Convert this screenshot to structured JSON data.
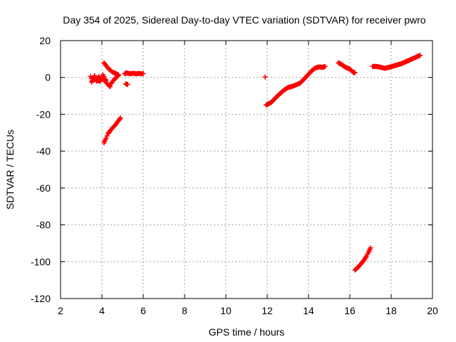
{
  "chart_data": {
    "type": "scatter",
    "title": "Day 354 of 2025, Sidereal Day-to-day VTEC variation (SDTVAR) for receiver pwro",
    "xlabel": "GPS time / hours",
    "ylabel": "SDTVAR / TECUs",
    "xlim": [
      2,
      20
    ],
    "ylim": [
      -120,
      20
    ],
    "xticks": [
      2,
      4,
      6,
      8,
      10,
      12,
      14,
      16,
      18,
      20
    ],
    "yticks": [
      -120,
      -100,
      -80,
      -60,
      -40,
      -20,
      0,
      20
    ],
    "xtick_labels": [
      "2",
      "4",
      "6",
      "8",
      "10",
      "12",
      "14",
      "16",
      "18",
      "20"
    ],
    "ytick_labels": [
      "-120",
      "-100",
      "-80",
      "-60",
      "-40",
      "-20",
      "0",
      "20"
    ],
    "grid": true,
    "legend": "none",
    "marker": "plus",
    "color": "#ff0000",
    "segments": [
      {
        "x": [
          3.45,
          3.55,
          3.65,
          3.75,
          3.85,
          3.95,
          4.05,
          4.1
        ],
        "y": [
          0.5,
          -1.5,
          1.0,
          -2.0,
          0.5,
          -1.0,
          1.5,
          0.5
        ]
      },
      {
        "x": [
          3.5,
          3.6,
          3.75,
          3.9,
          4.0,
          4.1,
          4.2
        ],
        "y": [
          -2.5,
          -1.0,
          -1.5,
          -2.0,
          -1.0,
          -0.5,
          -1.5
        ]
      },
      {
        "x": [
          4.1,
          4.2,
          4.3,
          4.4
        ],
        "y": [
          -1.5,
          -2.5,
          -4.0,
          -5.0
        ]
      },
      {
        "x": [
          4.4,
          4.5,
          4.6,
          4.7,
          4.8
        ],
        "y": [
          -4.0,
          -2.5,
          -1.0,
          0.0,
          1.0
        ]
      },
      {
        "x": [
          4.1,
          4.2,
          4.3,
          4.4,
          4.5,
          4.6,
          4.7,
          4.8
        ],
        "y": [
          8.0,
          6.5,
          5.0,
          4.0,
          3.0,
          2.5,
          2.0,
          1.5
        ]
      },
      {
        "x": [
          5.1,
          5.2,
          5.3,
          5.4,
          5.5,
          5.6,
          5.7,
          5.8,
          5.9,
          6.0
        ],
        "y": [
          2.0,
          2.5,
          2.2,
          2.0,
          2.3,
          2.1,
          2.0,
          2.2,
          2.0,
          2.1
        ]
      },
      {
        "x": [
          5.15,
          5.25
        ],
        "y": [
          -3.5,
          -3.8
        ]
      },
      {
        "x": [
          4.1,
          4.2,
          4.3,
          4.4,
          4.5,
          4.6,
          4.7,
          4.8,
          4.9
        ],
        "y": [
          -35.5,
          -33.0,
          -30.5,
          -29.0,
          -27.5,
          -26.5,
          -25.0,
          -23.5,
          -22.0
        ]
      },
      {
        "x": [
          11.9
        ],
        "y": [
          0.2
        ]
      },
      {
        "x": [
          11.95,
          12.2,
          12.5,
          12.8,
          13.0,
          13.3,
          13.6,
          13.9,
          14.1,
          14.3,
          14.5,
          14.7,
          14.8
        ],
        "y": [
          -15.0,
          -13.5,
          -10.0,
          -7.0,
          -5.5,
          -4.5,
          -3.0,
          0.5,
          3.0,
          5.0,
          5.7,
          5.5,
          6.0
        ]
      },
      {
        "x": [
          15.45,
          15.6,
          15.8,
          16.0,
          16.15,
          16.25
        ],
        "y": [
          8.0,
          7.0,
          5.5,
          4.5,
          3.0,
          2.5
        ]
      },
      {
        "x": [
          16.25,
          16.4,
          16.55,
          16.7,
          16.8,
          16.9,
          17.0
        ],
        "y": [
          -104.5,
          -103.0,
          -101.0,
          -99.0,
          -97.0,
          -95.0,
          -92.5
        ]
      },
      {
        "x": [
          17.1,
          17.3,
          17.5,
          17.7,
          17.9,
          18.2,
          18.5,
          18.8,
          19.1,
          19.4
        ],
        "y": [
          6.0,
          6.0,
          5.5,
          5.0,
          5.5,
          6.5,
          7.5,
          9.0,
          10.5,
          12.0
        ]
      }
    ]
  }
}
